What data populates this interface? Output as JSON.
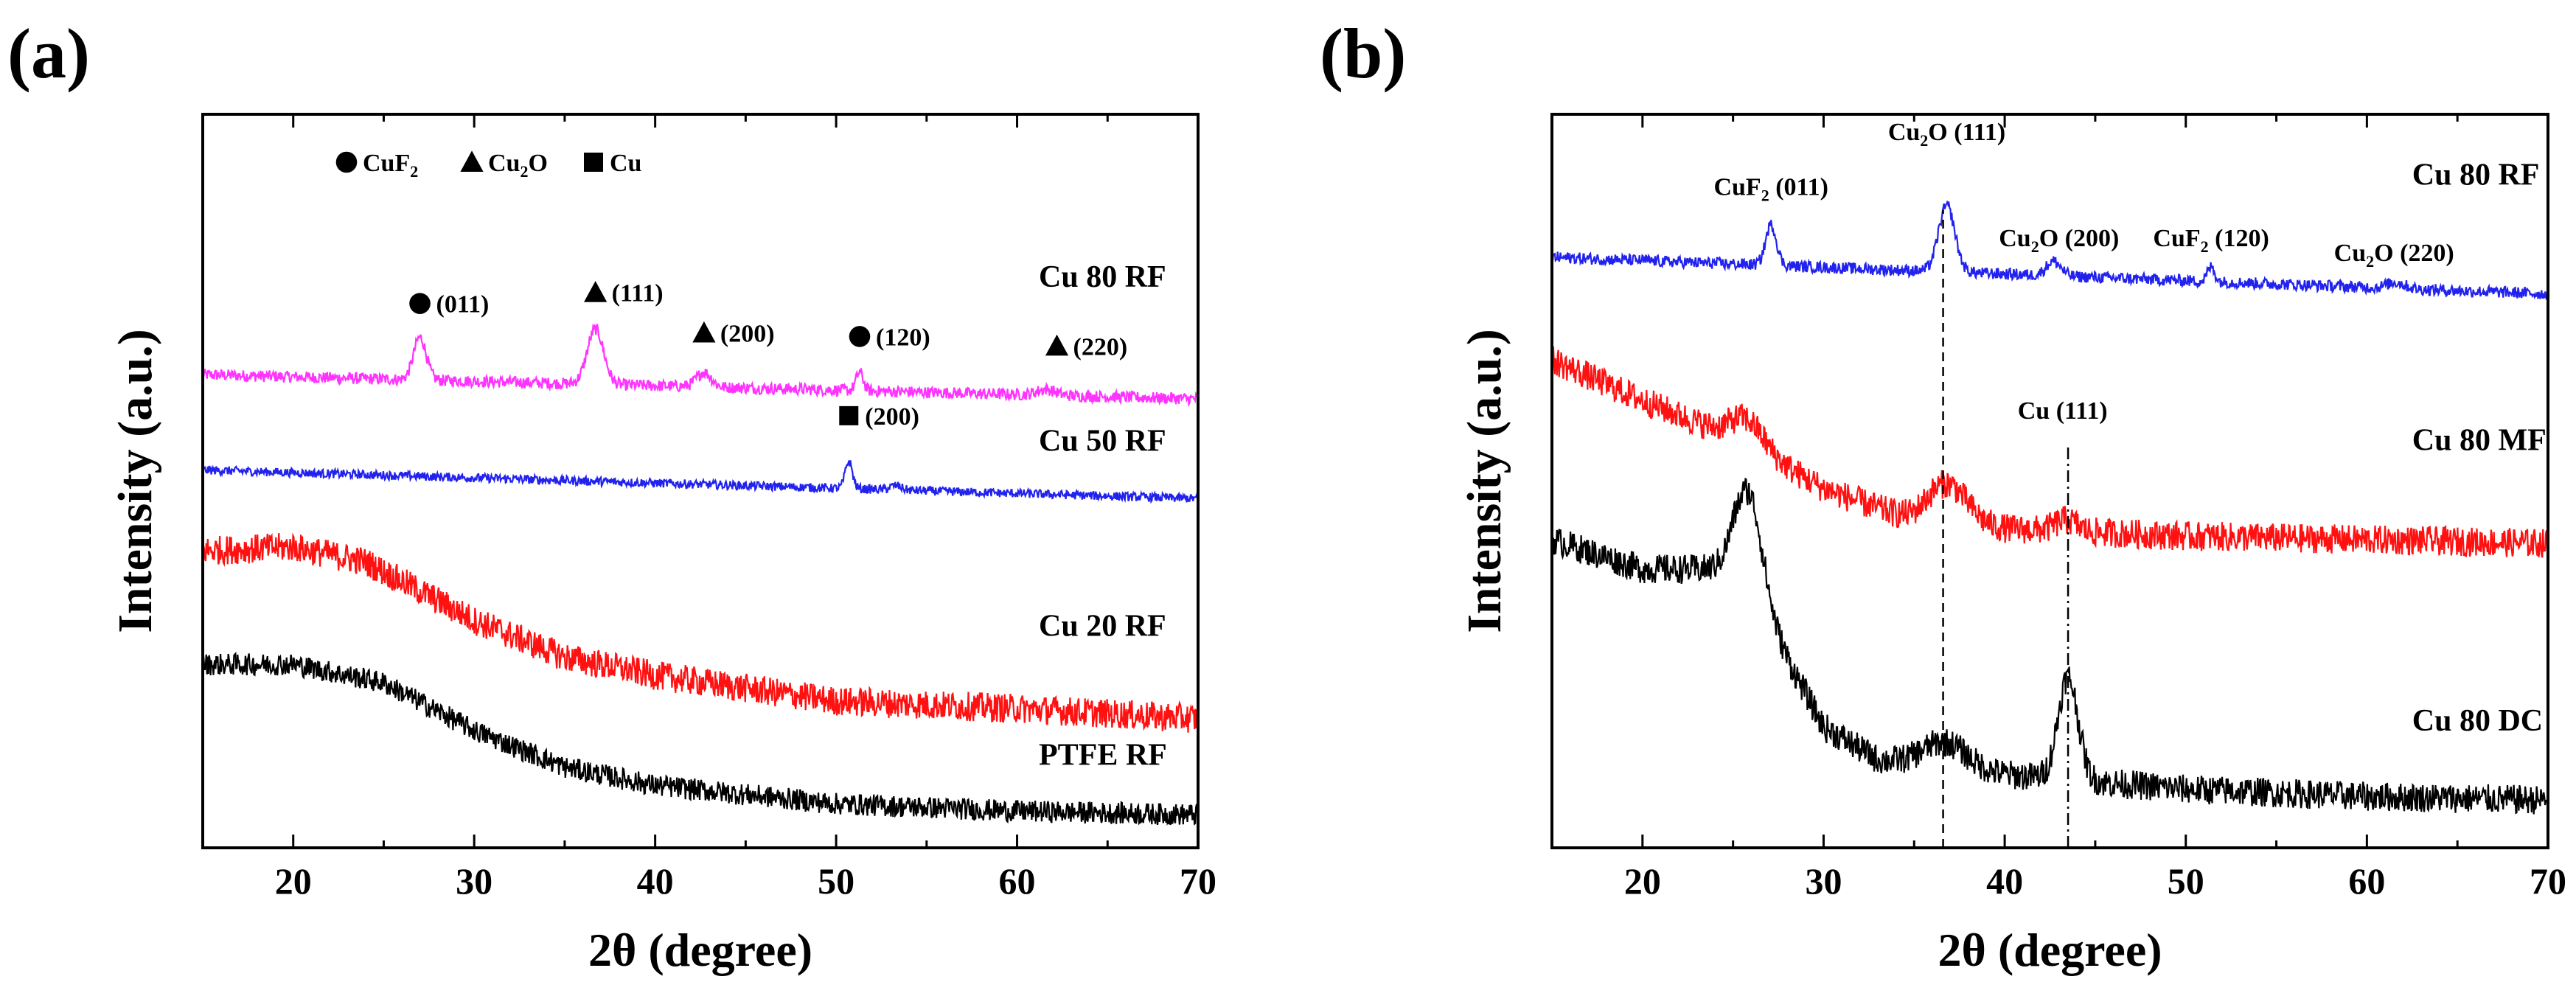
{
  "chart_data": [
    {
      "panel": "(a)",
      "type": "line",
      "title": "",
      "xlabel": "2θ (degree)",
      "ylabel": "Intensity (a.u.)",
      "xlim": [
        15,
        70
      ],
      "ylim": [
        0,
        1
      ],
      "x_ticks": [
        20,
        30,
        40,
        50,
        60,
        70
      ],
      "x_tick_labels": [
        "20",
        "30",
        "40",
        "50",
        "60",
        "70"
      ],
      "legend": [
        {
          "marker": "circle",
          "label_main": "CuF",
          "label_sub": "2",
          "label_tail": ""
        },
        {
          "marker": "triangle",
          "label_main": "Cu",
          "label_sub": "2",
          "label_tail": "O"
        },
        {
          "marker": "square",
          "label_main": "Cu",
          "label_sub": "",
          "label_tail": ""
        }
      ],
      "series": [
        {
          "name": "Cu 80 RF",
          "color": "#ff33ff",
          "baseline": [
            [
              15,
              0.645
            ],
            [
              70,
              0.612
            ]
          ],
          "peaks": [
            [
              27.0,
              0.058,
              0.35
            ],
            [
              36.7,
              0.075,
              0.45
            ],
            [
              42.7,
              0.02,
              0.4
            ],
            [
              51.3,
              0.025,
              0.2
            ],
            [
              61.6,
              0.008,
              0.5
            ]
          ],
          "noise": 0.008
        },
        {
          "name": "Cu 50 RF",
          "color": "#2222ee",
          "baseline": [
            [
              15,
              0.515
            ],
            [
              70,
              0.476
            ]
          ],
          "peaks": [
            [
              50.7,
              0.037,
              0.2
            ],
            [
              53.3,
              0.006,
              0.3
            ]
          ],
          "noise": 0.006
        },
        {
          "name": "Cu 20 RF",
          "color": "#ff1111",
          "baseline": [
            [
              15,
              0.405
            ],
            [
              20,
              0.41
            ],
            [
              24,
              0.39
            ],
            [
              30,
              0.31
            ],
            [
              35,
              0.26
            ],
            [
              40,
              0.235
            ],
            [
              50,
              0.2
            ],
            [
              60,
              0.19
            ],
            [
              70,
              0.176
            ]
          ],
          "peaks": [],
          "noise": 0.02
        },
        {
          "name": "PTFE RF",
          "color": "#000000",
          "baseline": [
            [
              15,
              0.25
            ],
            [
              20,
              0.25
            ],
            [
              25,
              0.225
            ],
            [
              30,
              0.16
            ],
            [
              35,
              0.11
            ],
            [
              40,
              0.085
            ],
            [
              50,
              0.06
            ],
            [
              60,
              0.05
            ],
            [
              70,
              0.045
            ]
          ],
          "peaks": [],
          "noise": 0.015
        }
      ],
      "annotations": [
        {
          "x": 27.0,
          "y": 0.73,
          "marker": "circle",
          "text": "(011)"
        },
        {
          "x": 36.7,
          "y": 0.745,
          "marker": "triangle",
          "text": "(111)"
        },
        {
          "x": 42.7,
          "y": 0.69,
          "marker": "triangle",
          "text": "(200)"
        },
        {
          "x": 51.3,
          "y": 0.685,
          "marker": "circle",
          "text": "(120)"
        },
        {
          "x": 62.2,
          "y": 0.672,
          "marker": "triangle",
          "text": "(220)"
        },
        {
          "x": 50.7,
          "y": 0.577,
          "marker": "square",
          "text": "(200)"
        }
      ],
      "series_labels": [
        {
          "text": "Cu 80 RF",
          "x": 61.2,
          "y": 0.765
        },
        {
          "text": "Cu 50 RF",
          "x": 61.2,
          "y": 0.541
        },
        {
          "text": "Cu 20 RF",
          "x": 61.2,
          "y": 0.289
        },
        {
          "text": "PTFE RF",
          "x": 61.2,
          "y": 0.113
        }
      ]
    },
    {
      "panel": "(b)",
      "type": "line",
      "title": "",
      "xlabel": "2θ (degree)",
      "ylabel": "Intensity (a.u.)",
      "xlim": [
        15,
        70
      ],
      "ylim": [
        0,
        1
      ],
      "x_ticks": [
        20,
        30,
        40,
        50,
        60,
        70
      ],
      "x_tick_labels": [
        "20",
        "30",
        "40",
        "50",
        "60",
        "70"
      ],
      "series": [
        {
          "name": "Cu 80 RF",
          "color": "#2222ee",
          "baseline": [
            [
              15,
              0.805
            ],
            [
              70,
              0.755
            ]
          ],
          "peaks": [
            [
              27.1,
              0.055,
              0.3
            ],
            [
              36.8,
              0.09,
              0.45
            ],
            [
              42.7,
              0.02,
              0.4
            ],
            [
              51.4,
              0.02,
              0.2
            ],
            [
              61.6,
              0.008,
              0.5
            ]
          ],
          "noise": 0.008
        },
        {
          "name": "Cu 80 MF",
          "color": "#ff1111",
          "baseline": [
            [
              15,
              0.665
            ],
            [
              20,
              0.61
            ],
            [
              25,
              0.56
            ],
            [
              30,
              0.49
            ],
            [
              35,
              0.445
            ],
            [
              40,
              0.435
            ],
            [
              45,
              0.43
            ],
            [
              50,
              0.425
            ],
            [
              60,
              0.42
            ],
            [
              70,
              0.415
            ]
          ],
          "peaks": [
            [
              25.8,
              0.035,
              0.9
            ],
            [
              36.8,
              0.055,
              1.1
            ],
            [
              43.4,
              0.015,
              0.6
            ]
          ],
          "noise": 0.02
        },
        {
          "name": "Cu 80 DC",
          "color": "#000000",
          "baseline": [
            [
              15,
              0.42
            ],
            [
              20,
              0.38
            ],
            [
              25,
              0.38
            ],
            [
              27.5,
              0.28
            ],
            [
              30,
              0.165
            ],
            [
              33,
              0.12
            ],
            [
              38,
              0.105
            ],
            [
              40,
              0.1
            ],
            [
              45,
              0.09
            ],
            [
              50,
              0.08
            ],
            [
              60,
              0.07
            ],
            [
              70,
              0.065
            ]
          ],
          "peaks": [
            [
              25.9,
              0.14,
              0.75
            ],
            [
              36.7,
              0.035,
              1.2
            ],
            [
              43.5,
              0.14,
              0.55
            ]
          ],
          "noise": 0.02
        }
      ],
      "annotations": [
        {
          "x": 27.1,
          "y": 0.89,
          "text_main": "CuF",
          "text_sub": "2",
          "text_tail": " (011)"
        },
        {
          "x": 36.8,
          "y": 0.965,
          "text_main": "Cu",
          "text_sub": "2",
          "text_tail": "O (111)"
        },
        {
          "x": 43.0,
          "y": 0.82,
          "text_main": "Cu",
          "text_sub": "2",
          "text_tail": "O (200)"
        },
        {
          "x": 51.4,
          "y": 0.82,
          "text_main": "CuF",
          "text_sub": "2",
          "text_tail": " (120)"
        },
        {
          "x": 61.5,
          "y": 0.8,
          "text_main": "Cu",
          "text_sub": "2",
          "text_tail": "O (220)"
        },
        {
          "x": 43.2,
          "y": 0.585,
          "text_main": "Cu (111)",
          "text_sub": "",
          "text_tail": ""
        }
      ],
      "reference_lines": [
        {
          "x": 36.6,
          "style": "dashed",
          "y_from": 0.0,
          "y_to": 0.87
        },
        {
          "x": 43.5,
          "style": "dashdot",
          "y_from": 0.0,
          "y_to": 0.55
        }
      ],
      "series_labels": [
        {
          "text": "Cu 80 RF",
          "x": 62.5,
          "y": 0.904
        },
        {
          "text": "Cu 80 MF",
          "x": 62.5,
          "y": 0.542
        },
        {
          "text": "Cu 80 DC",
          "x": 62.5,
          "y": 0.16
        }
      ]
    }
  ]
}
